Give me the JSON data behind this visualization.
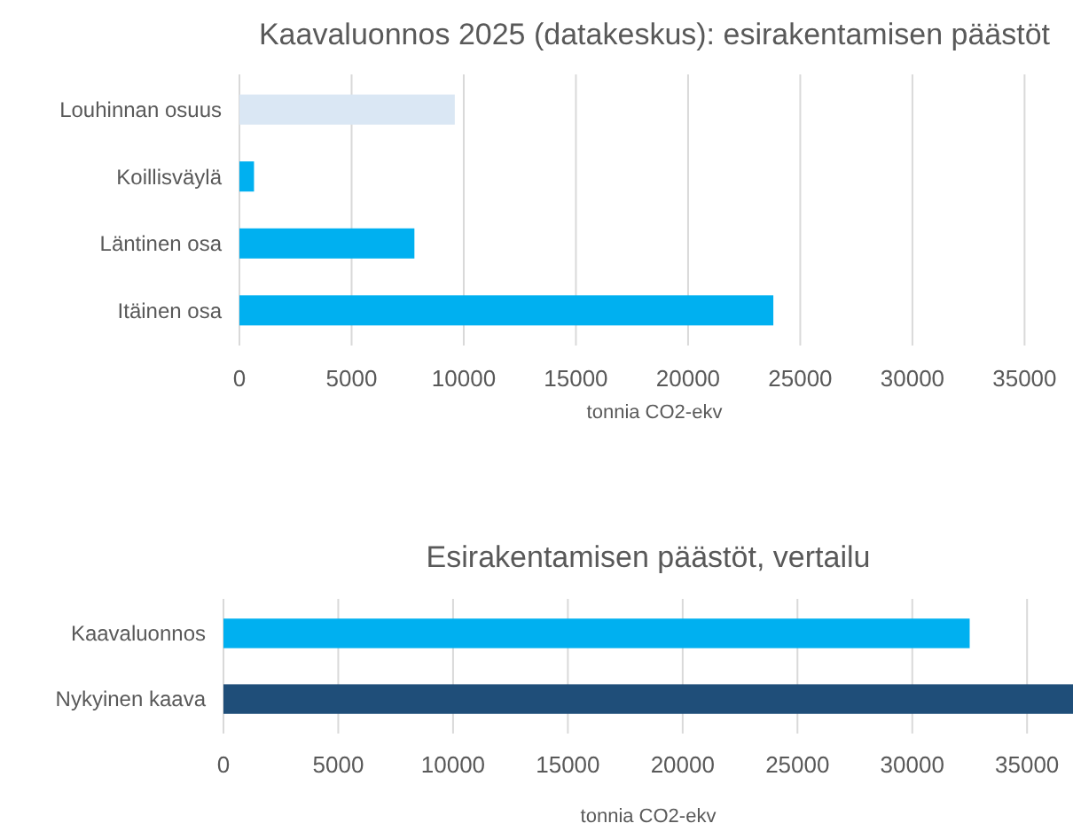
{
  "chart_data": [
    {
      "type": "bar",
      "orientation": "horizontal",
      "title": "Kaavaluonnos 2025 (datakeskus): esirakentamisen päästöt",
      "xlabel": "tonnia CO2-ekv",
      "categories": [
        "Louhinnan osuus",
        "Koillisväylä",
        "Läntinen osa",
        "Itäinen osa"
      ],
      "values": [
        9600,
        650,
        7800,
        23800
      ],
      "colors": [
        "#dae7f4",
        "#00b0f0",
        "#00b0f0",
        "#00b0f0"
      ],
      "xlim": [
        0,
        37000
      ],
      "xticks": [
        0,
        5000,
        10000,
        15000,
        20000,
        25000,
        30000,
        35000
      ],
      "grid": "x"
    },
    {
      "type": "bar",
      "orientation": "horizontal",
      "title": "Esirakentamisen päästöt, vertailu",
      "xlabel": "tonnia CO2-ekv",
      "categories": [
        "Kaavaluonnos",
        "Nykyinen kaava"
      ],
      "values": [
        32500,
        37000
      ],
      "colors": [
        "#00b0f0",
        "#1f4e79"
      ],
      "xlim": [
        0,
        37000
      ],
      "xticks": [
        0,
        5000,
        10000,
        15000,
        20000,
        25000,
        30000,
        35000
      ],
      "grid": "x"
    }
  ]
}
